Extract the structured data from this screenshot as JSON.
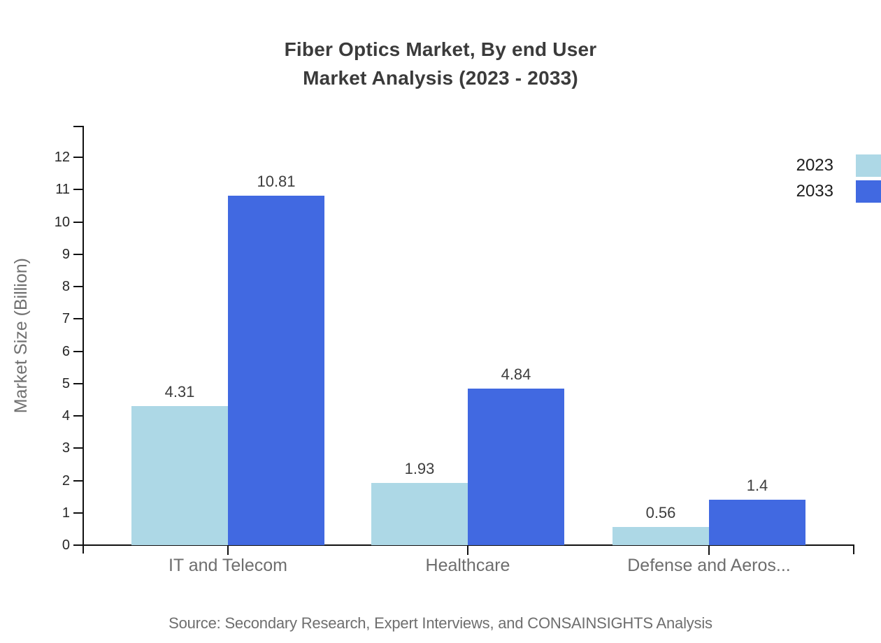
{
  "title": {
    "line1": "Fiber Optics Market, By end User",
    "line2": "Market Analysis (2023 - 2033)"
  },
  "chart_data": {
    "type": "bar",
    "title": "Fiber Optics Market, By end User Market Analysis (2023 - 2033)",
    "categories": [
      "IT and Telecom",
      "Healthcare",
      "Defense and Aeros..."
    ],
    "series": [
      {
        "name": "2023",
        "color": "#add8e6",
        "values": [
          4.31,
          1.93,
          0.56
        ],
        "labels": [
          "4.31",
          "1.93",
          "0.56"
        ]
      },
      {
        "name": "2033",
        "color": "#4169e1",
        "values": [
          10.81,
          4.84,
          1.4
        ],
        "labels": [
          "10.81",
          "4.84",
          "1.4"
        ]
      }
    ],
    "xlabel": "",
    "ylabel": "Market Size (Billion)",
    "ylim": [
      0,
      12
    ],
    "y_ticks": [
      0,
      1,
      2,
      3,
      4,
      5,
      6,
      7,
      8,
      9,
      10,
      11,
      12
    ],
    "grid": false,
    "legend_position": "top-right"
  },
  "source": "Source: Secondary Research, Expert Interviews, and CONSAINSIGHTS Analysis",
  "colors": {
    "series_2023": "#add8e6",
    "series_2033": "#4169e1",
    "axis": "#111111",
    "title_text": "#3b3b3b",
    "muted_text": "#6e6e6e"
  }
}
